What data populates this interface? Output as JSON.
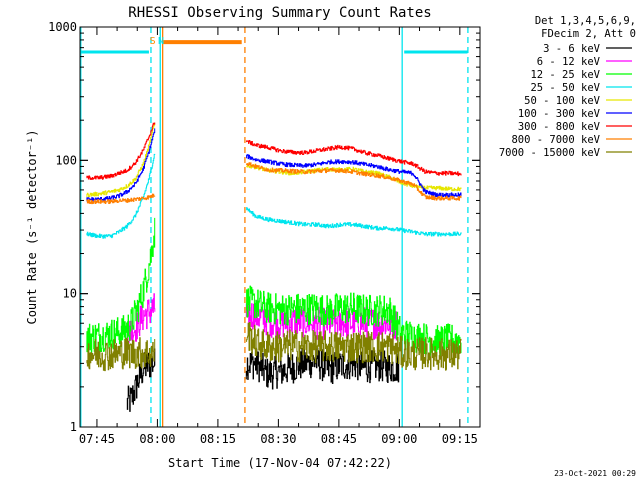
{
  "chart_data": {
    "type": "line",
    "title": "RHESSI Observing Summary Count Rates",
    "xlabel": "Start Time (17-Nov-04 07:42:22)",
    "ylabel": "Count Rate (s⁻¹ detector⁻¹)",
    "ylim": [
      1,
      1000
    ],
    "yscale": "log",
    "xlim_minutes": [
      -1.6,
      97.6
    ],
    "x_unit": "minutes after 07:42:22",
    "x_ticks": [
      {
        "label": "07:45",
        "minute": 2.6
      },
      {
        "label": "08:00",
        "minute": 17.6
      },
      {
        "label": "08:15",
        "minute": 32.6
      },
      {
        "label": "08:30",
        "minute": 47.6
      },
      {
        "label": "08:45",
        "minute": 62.6
      },
      {
        "label": "09:00",
        "minute": 77.6
      },
      {
        "label": "09:15",
        "minute": 92.6
      }
    ],
    "y_ticks": [
      {
        "label": "1",
        "value": 1
      },
      {
        "label": "10",
        "value": 10
      },
      {
        "label": "100",
        "value": 100
      },
      {
        "label": "1000",
        "value": 1000
      }
    ],
    "legend": {
      "placement": "right",
      "header": [
        "Det 1,3,4,5,6,9,",
        "FDecim 2, Att 0"
      ]
    },
    "gap_minutes": [
      18.2,
      39.2
    ],
    "markers": [
      {
        "label": "S",
        "minute": 16.4,
        "color": "#ff8c00"
      },
      {
        "label": "N",
        "minute": 18.5,
        "color": "#00e5ee"
      }
    ],
    "annotation_bars": [
      {
        "color": "#00e5ee",
        "from": -1.6,
        "to": 15.5,
        "value": 650
      },
      {
        "color": "#ff7f00",
        "from": 19.1,
        "to": 38.5,
        "value": 770
      },
      {
        "color": "#00e5ee",
        "from": 78.8,
        "to": 94.5,
        "value": 650
      }
    ],
    "vertical_lines": [
      {
        "minute": -1.4,
        "color": "#00e5ee",
        "style": "solid"
      },
      {
        "minute": 16.0,
        "color": "#00e5ee",
        "style": "dashed"
      },
      {
        "minute": 18.3,
        "color": "#00e5ee",
        "style": "solid"
      },
      {
        "minute": 18.9,
        "color": "#ff7f00",
        "style": "solid"
      },
      {
        "minute": 39.3,
        "color": "#ff7f00",
        "style": "dashed"
      },
      {
        "minute": 78.3,
        "color": "#00e5ee",
        "style": "solid"
      },
      {
        "minute": 94.6,
        "color": "#00e5ee",
        "style": "dashed"
      }
    ],
    "series": [
      {
        "name": "3 - 6 keV",
        "color": "#000000",
        "points": [
          [
            10,
            1.5
          ],
          [
            11,
            1.6
          ],
          [
            12,
            1.9
          ],
          [
            13,
            2.3
          ],
          [
            14,
            2.7
          ],
          [
            15,
            2.9
          ],
          [
            16,
            3.0
          ],
          [
            17,
            3.0
          ],
          [
            39.5,
            3.0
          ],
          [
            42,
            3.0
          ],
          [
            45,
            2.5
          ],
          [
            48,
            2.6
          ],
          [
            51,
            2.8
          ],
          [
            54,
            3.0
          ],
          [
            57,
            3.1
          ],
          [
            60,
            2.7
          ],
          [
            63,
            2.9
          ],
          [
            66,
            3.0
          ],
          [
            69,
            2.8
          ],
          [
            72,
            2.9
          ],
          [
            75,
            2.8
          ],
          [
            77.5,
            2.8
          ]
        ]
      },
      {
        "name": "6 - 12 keV",
        "color": "#ff00ff",
        "points": [
          [
            10,
            5.0
          ],
          [
            12,
            5.5
          ],
          [
            14,
            6.8
          ],
          [
            16,
            7.5
          ],
          [
            17,
            7.8
          ],
          [
            39.5,
            7.0
          ],
          [
            42,
            6.9
          ],
          [
            45,
            6.3
          ],
          [
            48,
            6.0
          ],
          [
            51,
            6.2
          ],
          [
            54,
            6.2
          ],
          [
            57,
            6.0
          ],
          [
            60,
            6.0
          ],
          [
            63,
            6.1
          ],
          [
            66,
            6.0
          ],
          [
            69,
            6.1
          ],
          [
            72,
            6.0
          ],
          [
            75,
            6.0
          ],
          [
            77,
            5.9
          ]
        ]
      },
      {
        "name": "12 - 25 keV",
        "color": "#00ff00",
        "points": [
          [
            0,
            4.7
          ],
          [
            3,
            4.8
          ],
          [
            6,
            5.0
          ],
          [
            9,
            5.2
          ],
          [
            11,
            5.9
          ],
          [
            13,
            8.3
          ],
          [
            14,
            10.4
          ],
          [
            15,
            13.9
          ],
          [
            16,
            19.8
          ],
          [
            17,
            31.0
          ],
          [
            39.5,
            8.8
          ],
          [
            42,
            8.4
          ],
          [
            45,
            7.8
          ],
          [
            48,
            7.6
          ],
          [
            51,
            7.7
          ],
          [
            54,
            7.7
          ],
          [
            57,
            7.8
          ],
          [
            60,
            7.4
          ],
          [
            63,
            7.8
          ],
          [
            66,
            7.8
          ],
          [
            69,
            7.5
          ],
          [
            72,
            7.5
          ],
          [
            75,
            7.6
          ],
          [
            78,
            5.0
          ],
          [
            81,
            4.8
          ],
          [
            84,
            4.6
          ],
          [
            87,
            4.4
          ],
          [
            90,
            4.5
          ],
          [
            93,
            4.5
          ]
        ]
      },
      {
        "name": "25 - 50 keV",
        "color": "#00e5ee",
        "points": [
          [
            0,
            28
          ],
          [
            3,
            27
          ],
          [
            6,
            27
          ],
          [
            8,
            29
          ],
          [
            10,
            32
          ],
          [
            12,
            38
          ],
          [
            14,
            52
          ],
          [
            15.5,
            73
          ],
          [
            17,
            116
          ],
          [
            39.5,
            44
          ],
          [
            42,
            38
          ],
          [
            45,
            36
          ],
          [
            48,
            35
          ],
          [
            51,
            34
          ],
          [
            54,
            33
          ],
          [
            57,
            33
          ],
          [
            60,
            32
          ],
          [
            63,
            33
          ],
          [
            66,
            33
          ],
          [
            69,
            32
          ],
          [
            72,
            31
          ],
          [
            75,
            31
          ],
          [
            78,
            30
          ],
          [
            81,
            29
          ],
          [
            84,
            28
          ],
          [
            87,
            28
          ],
          [
            90,
            28
          ],
          [
            93,
            28
          ]
        ]
      },
      {
        "name": "50 - 100 keV",
        "color": "#e6e600",
        "points": [
          [
            0,
            55
          ],
          [
            3,
            56
          ],
          [
            6,
            58
          ],
          [
            8,
            60
          ],
          [
            10,
            64
          ],
          [
            12,
            72
          ],
          [
            14,
            93
          ],
          [
            15.5,
            129
          ],
          [
            17,
            195
          ],
          [
            39.5,
            92
          ],
          [
            42,
            89
          ],
          [
            45,
            84
          ],
          [
            48,
            82
          ],
          [
            51,
            80
          ],
          [
            54,
            82
          ],
          [
            57,
            84
          ],
          [
            60,
            86
          ],
          [
            63,
            85
          ],
          [
            66,
            86
          ],
          [
            69,
            82
          ],
          [
            72,
            80
          ],
          [
            75,
            75
          ],
          [
            78,
            68
          ],
          [
            81,
            64
          ],
          [
            84,
            62
          ],
          [
            87,
            62
          ],
          [
            90,
            61
          ],
          [
            93,
            61
          ]
        ]
      },
      {
        "name": "100 - 300 keV",
        "color": "#0000ff",
        "points": [
          [
            0,
            51
          ],
          [
            3,
            51
          ],
          [
            6,
            52
          ],
          [
            8,
            54
          ],
          [
            10,
            58
          ],
          [
            12,
            66
          ],
          [
            14,
            85
          ],
          [
            15.5,
            117
          ],
          [
            17,
            172
          ],
          [
            39.5,
            108
          ],
          [
            42,
            101
          ],
          [
            45,
            98
          ],
          [
            48,
            94
          ],
          [
            51,
            92
          ],
          [
            54,
            91
          ],
          [
            57,
            93
          ],
          [
            60,
            97
          ],
          [
            63,
            98
          ],
          [
            66,
            97
          ],
          [
            69,
            93
          ],
          [
            72,
            90
          ],
          [
            75,
            85
          ],
          [
            78,
            82
          ],
          [
            81,
            80
          ],
          [
            84,
            58
          ],
          [
            87,
            55
          ],
          [
            90,
            55
          ],
          [
            93,
            55
          ]
        ]
      },
      {
        "name": "300 - 800 keV",
        "color": "#ff0000",
        "points": [
          [
            0,
            74
          ],
          [
            3,
            74
          ],
          [
            6,
            76
          ],
          [
            8,
            80
          ],
          [
            10,
            84
          ],
          [
            12,
            95
          ],
          [
            14,
            118
          ],
          [
            15.5,
            151
          ],
          [
            17,
            200
          ],
          [
            39.5,
            140
          ],
          [
            42,
            130
          ],
          [
            45,
            125
          ],
          [
            48,
            118
          ],
          [
            51,
            115
          ],
          [
            54,
            114
          ],
          [
            57,
            118
          ],
          [
            60,
            122
          ],
          [
            63,
            126
          ],
          [
            66,
            122
          ],
          [
            69,
            114
          ],
          [
            72,
            109
          ],
          [
            75,
            103
          ],
          [
            78,
            98
          ],
          [
            81,
            94
          ],
          [
            84,
            82
          ],
          [
            87,
            80
          ],
          [
            90,
            80
          ],
          [
            93,
            79
          ]
        ]
      },
      {
        "name": "800 - 7000 keV",
        "color": "#ff7f00",
        "points": [
          [
            0,
            49
          ],
          [
            3,
            49
          ],
          [
            6,
            49
          ],
          [
            8,
            50
          ],
          [
            10,
            50
          ],
          [
            12,
            51
          ],
          [
            14,
            52
          ],
          [
            15.5,
            53
          ],
          [
            17,
            55
          ],
          [
            39.5,
            96
          ],
          [
            42,
            90
          ],
          [
            45,
            85
          ],
          [
            48,
            84
          ],
          [
            51,
            83
          ],
          [
            54,
            82
          ],
          [
            57,
            83
          ],
          [
            60,
            84
          ],
          [
            63,
            84
          ],
          [
            66,
            82
          ],
          [
            69,
            79
          ],
          [
            72,
            77
          ],
          [
            75,
            74
          ],
          [
            78,
            70
          ],
          [
            81,
            66
          ],
          [
            84,
            53
          ],
          [
            87,
            52
          ],
          [
            90,
            52
          ],
          [
            93,
            52
          ]
        ]
      },
      {
        "name": "7000 - 15000 keV",
        "color": "#808000",
        "points": [
          [
            0,
            3.6
          ],
          [
            3,
            3.5
          ],
          [
            6,
            3.5
          ],
          [
            9,
            3.6
          ],
          [
            12,
            3.6
          ],
          [
            15,
            3.6
          ],
          [
            17,
            3.6
          ],
          [
            39.5,
            5.2
          ],
          [
            42,
            4.3
          ],
          [
            45,
            4.0
          ],
          [
            48,
            4.0
          ],
          [
            51,
            4.1
          ],
          [
            54,
            4.0
          ],
          [
            57,
            4.0
          ],
          [
            60,
            4.0
          ],
          [
            63,
            4.0
          ],
          [
            66,
            4.0
          ],
          [
            69,
            4.0
          ],
          [
            72,
            4.0
          ],
          [
            75,
            4.0
          ],
          [
            78,
            3.6
          ],
          [
            81,
            3.5
          ],
          [
            84,
            3.6
          ],
          [
            87,
            3.5
          ],
          [
            90,
            3.5
          ],
          [
            93,
            3.5
          ]
        ]
      }
    ]
  },
  "footer": {
    "timestamp": "23-Oct-2021 00:29"
  }
}
